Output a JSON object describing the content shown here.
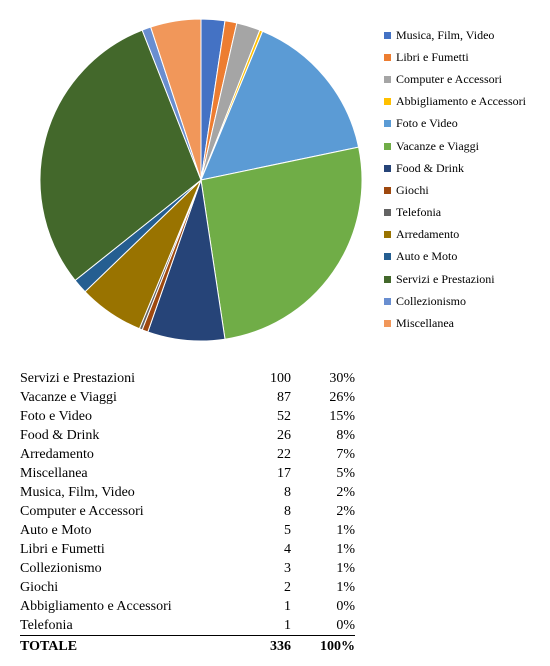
{
  "chart_data": {
    "type": "pie",
    "start": "12 o'clock",
    "direction": "clockwise",
    "legend_position": "right",
    "slices": [
      {
        "label": "Musica, Film, Video",
        "value": 8,
        "color": "#4472C4"
      },
      {
        "label": "Libri e Fumetti",
        "value": 4,
        "color": "#ED7D31"
      },
      {
        "label": "Computer e Accessori",
        "value": 8,
        "color": "#A5A5A5"
      },
      {
        "label": "Abbigliamento e Accessori",
        "value": 1,
        "color": "#FFC000"
      },
      {
        "label": "Foto e Video",
        "value": 52,
        "color": "#5B9BD5"
      },
      {
        "label": "Vacanze e Viaggi",
        "value": 87,
        "color": "#70AD47"
      },
      {
        "label": "Food & Drink",
        "value": 26,
        "color": "#264478"
      },
      {
        "label": "Giochi",
        "value": 2,
        "color": "#9E480E"
      },
      {
        "label": "Telefonia",
        "value": 1,
        "color": "#636363"
      },
      {
        "label": "Arredamento",
        "value": 22,
        "color": "#997300"
      },
      {
        "label": "Auto e Moto",
        "value": 5,
        "color": "#255E91"
      },
      {
        "label": "Servizi e Prestazioni",
        "value": 100,
        "color": "#43682B"
      },
      {
        "label": "Collezionismo",
        "value": 3,
        "color": "#698ED0"
      },
      {
        "label": "Miscellanea",
        "value": 17,
        "color": "#F1975A"
      }
    ]
  },
  "table": {
    "rows": [
      {
        "category": "Servizi e Prestazioni",
        "count": "100",
        "percent": "30%"
      },
      {
        "category": "Vacanze e Viaggi",
        "count": "87",
        "percent": "26%"
      },
      {
        "category": "Foto e Video",
        "count": "52",
        "percent": "15%"
      },
      {
        "category": "Food & Drink",
        "count": "26",
        "percent": "8%"
      },
      {
        "category": "Arredamento",
        "count": "22",
        "percent": "7%"
      },
      {
        "category": "Miscellanea",
        "count": "17",
        "percent": "5%"
      },
      {
        "category": "Musica, Film, Video",
        "count": "8",
        "percent": "2%"
      },
      {
        "category": "Computer e Accessori",
        "count": "8",
        "percent": "2%"
      },
      {
        "category": "Auto e Moto",
        "count": "5",
        "percent": "1%"
      },
      {
        "category": "Libri e Fumetti",
        "count": "4",
        "percent": "1%"
      },
      {
        "category": "Collezionismo",
        "count": "3",
        "percent": "1%"
      },
      {
        "category": "Giochi",
        "count": "2",
        "percent": "1%"
      },
      {
        "category": "Abbigliamento e Accessori",
        "count": "1",
        "percent": "0%"
      },
      {
        "category": "Telefonia",
        "count": "1",
        "percent": "0%"
      }
    ],
    "total": {
      "label": "TOTALE",
      "count": "336",
      "percent": "100%"
    }
  }
}
